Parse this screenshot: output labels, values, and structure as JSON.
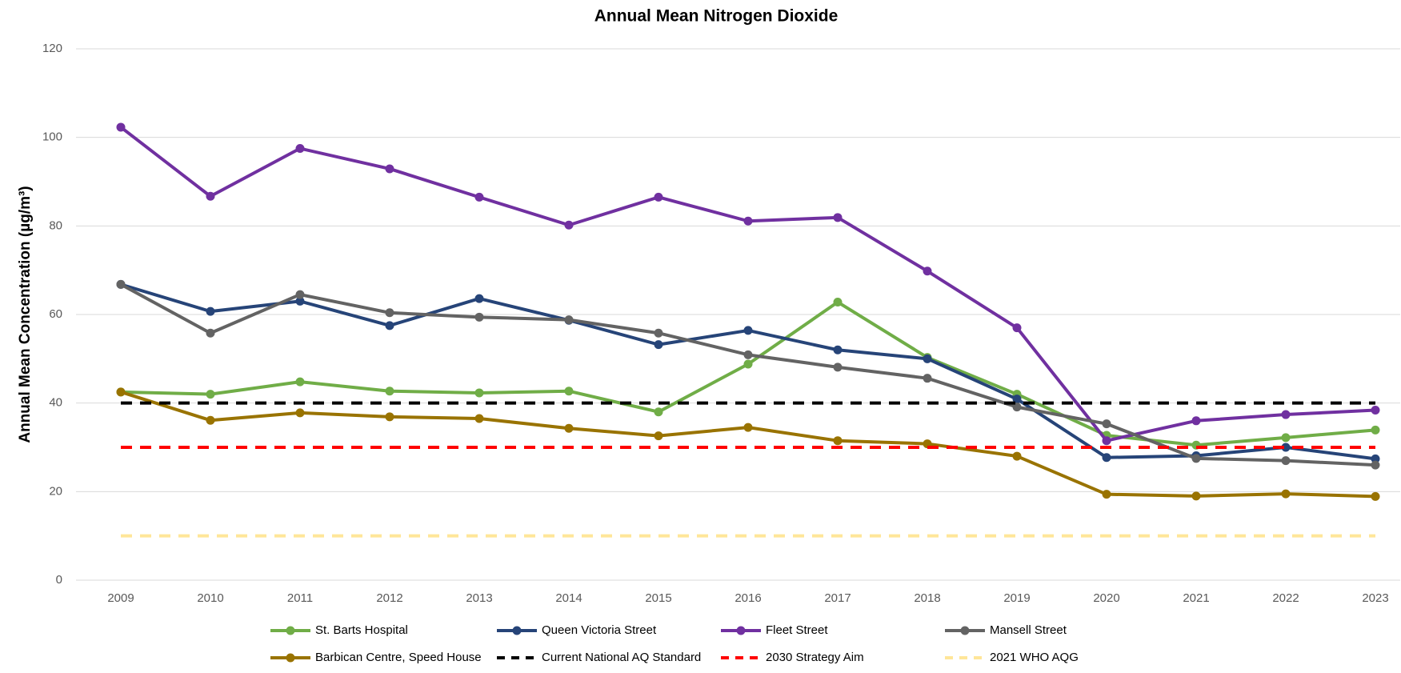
{
  "chart_data": {
    "type": "line",
    "title": "Annual Mean Nitrogen Dioxide",
    "y_label": "Annual Mean Concentration (µg/m³)",
    "categories": [
      "2009",
      "2010",
      "2011",
      "2012",
      "2013",
      "2014",
      "2015",
      "2016",
      "2017",
      "2018",
      "2019",
      "2020",
      "2021",
      "2022",
      "2023"
    ],
    "ylim": [
      0,
      120
    ],
    "yticks": [
      0,
      20,
      40,
      60,
      80,
      100,
      120
    ],
    "grid": true,
    "series": [
      {
        "name": "St. Barts Hospital",
        "color": "#70ad47",
        "values": [
          42.5,
          42,
          44.8,
          42.7,
          42.3,
          42.7,
          38,
          48.8,
          62.8,
          50.3,
          42,
          32.7,
          30.5,
          32.2,
          33.9
        ]
      },
      {
        "name": "Queen Victoria Street",
        "color": "#264478",
        "values": [
          66.8,
          60.7,
          63,
          57.5,
          63.6,
          58.7,
          53.2,
          56.4,
          52,
          50,
          40.9,
          27.7,
          28.1,
          30,
          27.4
        ]
      },
      {
        "name": "Fleet Street",
        "color": "#7030a0",
        "values": [
          102.3,
          86.7,
          97.5,
          92.9,
          86.5,
          80.2,
          86.5,
          81.1,
          81.9,
          69.8,
          57,
          31.5,
          36,
          37.4,
          38.4
        ]
      },
      {
        "name": "Mansell Street",
        "color": "#636363",
        "values": [
          66.8,
          55.8,
          64.5,
          60.4,
          59.4,
          58.8,
          55.8,
          50.9,
          48.1,
          45.6,
          39.1,
          35.3,
          27.5,
          27,
          26
        ]
      },
      {
        "name": "Barbican Centre, Speed House",
        "color": "#997300",
        "values": [
          42.5,
          36.1,
          37.8,
          36.9,
          36.5,
          34.3,
          32.6,
          34.5,
          31.5,
          30.8,
          28,
          19.4,
          19,
          19.5,
          18.9
        ]
      },
      {
        "name": "Current National AQ Standard",
        "color": "#000000",
        "dash": true,
        "values": [
          40,
          40,
          40,
          40,
          40,
          40,
          40,
          40,
          40,
          40,
          40,
          40,
          40,
          40,
          40
        ]
      },
      {
        "name": "2030 Strategy Aim",
        "color": "#ff0000",
        "dash": true,
        "values": [
          30,
          30,
          30,
          30,
          30,
          30,
          30,
          30,
          30,
          30,
          30,
          30,
          30,
          30,
          30
        ]
      },
      {
        "name": "2021 WHO AQG",
        "color": "#ffe699",
        "dash": true,
        "values": [
          10,
          10,
          10,
          10,
          10,
          10,
          10,
          10,
          10,
          10,
          10,
          10,
          10,
          10,
          10
        ]
      }
    ]
  }
}
